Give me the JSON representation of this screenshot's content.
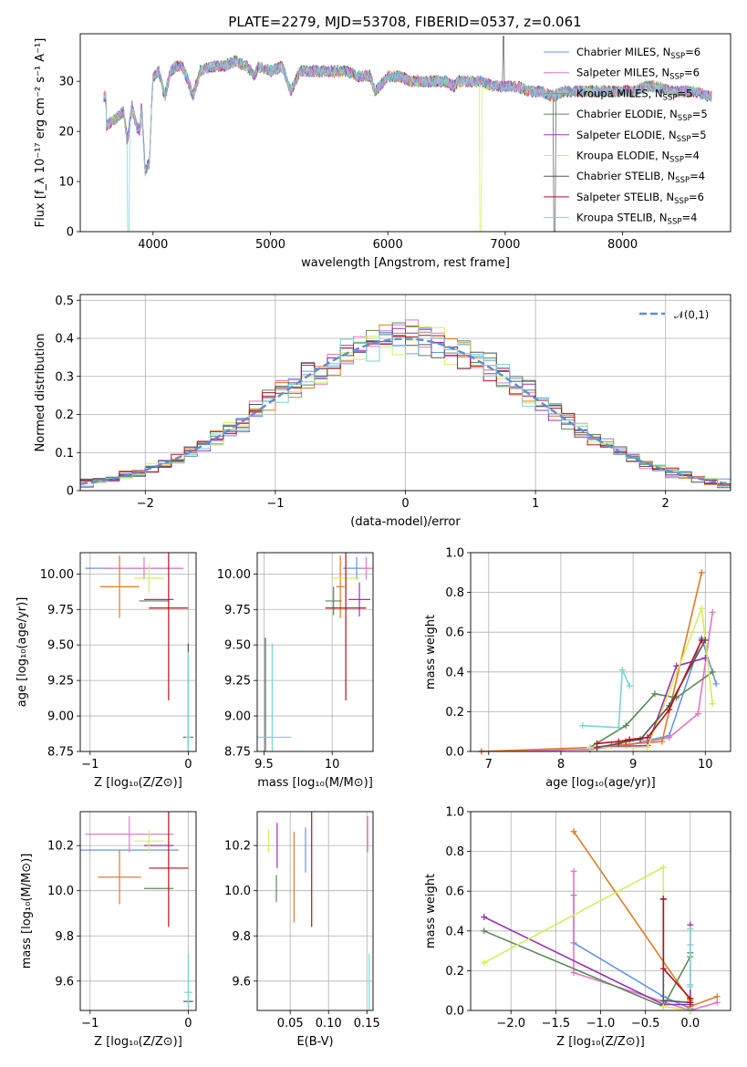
{
  "figure": {
    "title": "PLATE=2279, MJD=53708, FIBERID=0537, z=0.061"
  },
  "colors": {
    "chabrier_miles": "#6495ED",
    "salpeter_miles": "#E377C2",
    "kroupa_miles": "#E07B24",
    "chabrier_elodie": "#5A8A5A",
    "salpeter_elodie": "#9B30B8",
    "kroupa_elodie": "#D4EE5A",
    "chabrier_stelib": "#555555",
    "salpeter_stelib": "#B5121B",
    "kroupa_stelib": "#7ED0D6"
  },
  "chart_data": [
    {
      "id": "spectrum",
      "type": "line",
      "title": "PLATE=2279, MJD=53708, FIBERID=0537, z=0.061",
      "xlabel": "wavelength [Angstrom, rest frame]",
      "ylabel": "Flux [f_λ 10⁻¹⁷ erg cm⁻² s⁻¹ A⁻¹]",
      "xlim": [
        3380,
        8920
      ],
      "ylim": [
        0,
        39.5
      ],
      "xticks": [
        4000,
        5000,
        6000,
        7000,
        8000
      ],
      "yticks": [
        0,
        10,
        20,
        30
      ],
      "legend_position": "top-right",
      "legend": [
        {
          "label": "Chabrier MILES, N",
          "sub": "SSP",
          "eq": "=6",
          "color_key": "chabrier_miles"
        },
        {
          "label": "Salpeter MILES, N",
          "sub": "SSP",
          "eq": "=6",
          "color_key": "salpeter_miles"
        },
        {
          "label": "Kroupa MILES, N",
          "sub": "SSP",
          "eq": "=5",
          "color_key": "kroupa_miles"
        },
        {
          "label": "Chabrier ELODIE, N",
          "sub": "SSP",
          "eq": "=5",
          "color_key": "chabrier_elodie"
        },
        {
          "label": "Salpeter ELODIE, N",
          "sub": "SSP",
          "eq": "=5",
          "color_key": "salpeter_elodie"
        },
        {
          "label": "Kroupa ELODIE, N",
          "sub": "SSP",
          "eq": "=4",
          "color_key": "kroupa_elodie"
        },
        {
          "label": "Chabrier STELIB, N",
          "sub": "SSP",
          "eq": "=4",
          "color_key": "chabrier_stelib"
        },
        {
          "label": "Salpeter STELIB, N",
          "sub": "SSP",
          "eq": "=6",
          "color_key": "salpeter_stelib"
        },
        {
          "label": "Kroupa STELIB, N",
          "sub": "SSP",
          "eq": "=4",
          "color_key": "kroupa_stelib"
        }
      ],
      "spectrum_x": [
        3600,
        3650,
        3700,
        3750,
        3780,
        3820,
        3860,
        3889,
        3900,
        3933,
        3969,
        4000,
        4050,
        4101,
        4150,
        4200,
        4250,
        4300,
        4340,
        4400,
        4500,
        4600,
        4700,
        4800,
        4861,
        4900,
        5000,
        5100,
        5175,
        5250,
        5350,
        5450,
        5550,
        5650,
        5750,
        5850,
        5893,
        6000,
        6100,
        6200,
        6300,
        6400,
        6500,
        6563,
        6600,
        6700,
        6800,
        6900,
        7000,
        7100,
        7200,
        7300,
        7400,
        7500,
        7600,
        7700,
        7800,
        7900,
        8000,
        8100,
        8200,
        8300,
        8400,
        8500,
        8600,
        8750
      ],
      "spectrum_y": [
        21,
        22,
        23,
        24,
        18,
        25,
        21,
        20,
        26,
        12,
        14,
        31,
        32,
        27,
        32,
        33,
        33,
        30,
        27,
        32,
        33,
        33,
        34,
        33,
        31,
        33,
        32,
        33,
        28,
        32,
        32,
        32,
        32,
        32,
        31,
        31,
        28,
        31,
        31,
        30,
        30,
        30,
        30,
        29,
        30,
        30,
        30,
        29,
        29,
        29,
        28,
        28,
        27,
        28,
        28,
        28,
        28,
        28,
        28,
        28,
        29,
        29,
        28,
        28,
        28,
        27
      ]
    },
    {
      "id": "residuals",
      "type": "line",
      "xlabel": "(data-model)/error",
      "ylabel": "Normed distribution",
      "xlim": [
        -2.5,
        2.5
      ],
      "ylim": [
        0,
        0.515
      ],
      "xticks": [
        -2,
        -1,
        0,
        1,
        2
      ],
      "yticks": [
        0.0,
        0.1,
        0.2,
        0.3,
        0.4,
        0.5
      ],
      "grid": true,
      "legend_position": "top-right",
      "legend_label": "𝒩(0,1)",
      "normal_color": "#5B8FD6",
      "bin_width": 0.1
    },
    {
      "id": "age_vs_Z",
      "type": "scatter",
      "xlabel": "Z [log₁₀(Z/Z⊙)]",
      "ylabel": "age  [log₁₀(age/yr)]",
      "xlim": [
        -1.1,
        0.08
      ],
      "ylim": [
        8.75,
        10.15
      ],
      "xticks": [
        -1,
        0
      ],
      "yticks": [
        8.75,
        9.0,
        9.25,
        9.5,
        9.75,
        10.0
      ],
      "grid": true,
      "points": [
        {
          "model": "chabrier_miles",
          "x": -0.55,
          "y": 10.04,
          "xerr": 0.5,
          "yerr": 0.0
        },
        {
          "model": "salpeter_miles",
          "x": -0.45,
          "y": 10.04,
          "xerr": 0.4,
          "yerr": 0.08
        },
        {
          "model": "kroupa_miles",
          "x": -0.7,
          "y": 9.91,
          "xerr": 0.2,
          "yerr": 0.22
        },
        {
          "model": "chabrier_elodie",
          "x": -0.35,
          "y": 9.81,
          "xerr": 0.15,
          "yerr": 0.0
        },
        {
          "model": "salpeter_elodie",
          "x": -0.3,
          "y": 9.82,
          "xerr": 0.15,
          "yerr": 0.0
        },
        {
          "model": "kroupa_elodie",
          "x": -0.4,
          "y": 9.97,
          "xerr": 0.15,
          "yerr": 0.1
        },
        {
          "model": "salpeter_stelib",
          "x": -0.2,
          "y": 9.76,
          "xerr": 0.2,
          "yerr": 0.65
        },
        {
          "model": "chabrier_stelib",
          "x": 0.0,
          "y": 8.85,
          "xerr": 0.05,
          "yerr": 0.66
        },
        {
          "model": "kroupa_stelib",
          "x": 0.0,
          "y": 8.85,
          "xerr": 0.03,
          "yerr": 0.6
        }
      ]
    },
    {
      "id": "age_vs_mass",
      "type": "scatter",
      "xlabel": "mass [log₁₀(M/M⊙)]",
      "xlim": [
        9.45,
        10.3
      ],
      "ylim": [
        8.75,
        10.15
      ],
      "xticks": [
        9.5,
        10.0
      ],
      "yticks": [
        8.75,
        9.0,
        9.25,
        9.5,
        9.75,
        10.0
      ],
      "grid": true,
      "points": [
        {
          "model": "chabrier_miles",
          "x": 10.18,
          "y": 10.04,
          "xerr": 0.1,
          "yerr": 0.08
        },
        {
          "model": "salpeter_miles",
          "x": 10.25,
          "y": 10.04,
          "xerr": 0.05,
          "yerr": 0.08
        },
        {
          "model": "kroupa_miles",
          "x": 10.06,
          "y": 9.91,
          "xerr": 0.03,
          "yerr": 0.22
        },
        {
          "model": "chabrier_elodie",
          "x": 10.01,
          "y": 9.81,
          "xerr": 0.06,
          "yerr": 0.1
        },
        {
          "model": "salpeter_elodie",
          "x": 10.2,
          "y": 9.82,
          "xerr": 0.08,
          "yerr": 0.12
        },
        {
          "model": "kroupa_elodie",
          "x": 10.1,
          "y": 9.97,
          "xerr": 0.1,
          "yerr": 0.1
        },
        {
          "model": "salpeter_stelib",
          "x": 10.1,
          "y": 9.76,
          "xerr": 0.15,
          "yerr": 0.65
        },
        {
          "model": "chabrier_stelib",
          "x": 9.51,
          "y": 8.85,
          "xerr": 0.0,
          "yerr": 0.7
        },
        {
          "model": "kroupa_stelib",
          "x": 9.56,
          "y": 8.85,
          "xerr": 0.14,
          "yerr": 0.66
        }
      ]
    },
    {
      "id": "weight_vs_age",
      "type": "line",
      "xlabel": "age  [log₁₀(age/yr)]",
      "ylabel": "mass weight",
      "xlim": [
        6.75,
        10.35
      ],
      "ylim": [
        0,
        1.0
      ],
      "xticks": [
        7,
        8,
        9,
        10
      ],
      "yticks": [
        0.0,
        0.2,
        0.4,
        0.6,
        0.8,
        1.0
      ],
      "grid": true,
      "series": [
        {
          "model": "chabrier_miles",
          "x": [
            6.9,
            8.4,
            8.9,
            9.5,
            9.95,
            10.15
          ],
          "y": [
            0.0,
            0.01,
            0.03,
            0.08,
            0.57,
            0.34
          ]
        },
        {
          "model": "salpeter_miles",
          "x": [
            6.9,
            8.4,
            8.9,
            9.5,
            9.9,
            10.1
          ],
          "y": [
            0.0,
            0.01,
            0.03,
            0.07,
            0.19,
            0.7
          ]
        },
        {
          "model": "kroupa_miles",
          "x": [
            6.9,
            8.4,
            8.7,
            9.4,
            9.95
          ],
          "y": [
            0.0,
            0.02,
            0.03,
            0.05,
            0.9
          ]
        },
        {
          "model": "chabrier_elodie",
          "x": [
            8.4,
            8.9,
            9.3,
            9.6,
            10.1
          ],
          "y": [
            0.02,
            0.13,
            0.29,
            0.27,
            0.4
          ]
        },
        {
          "model": "salpeter_elodie",
          "x": [
            8.5,
            9.2,
            9.6,
            10.0
          ],
          "y": [
            0.02,
            0.03,
            0.43,
            0.47
          ]
        },
        {
          "model": "kroupa_elodie",
          "x": [
            8.4,
            9.2,
            9.95,
            10.1
          ],
          "y": [
            0.02,
            0.02,
            0.72,
            0.24
          ]
        },
        {
          "model": "chabrier_stelib",
          "x": [
            8.5,
            8.8,
            8.9,
            9.1,
            9.5,
            10.0
          ],
          "y": [
            0.02,
            0.04,
            0.05,
            0.06,
            0.23,
            0.56
          ]
        },
        {
          "model": "salpeter_stelib",
          "x": [
            8.5,
            8.8,
            8.95,
            9.2,
            9.5,
            9.95
          ],
          "y": [
            0.04,
            0.05,
            0.06,
            0.07,
            0.21,
            0.56
          ]
        },
        {
          "model": "kroupa_stelib",
          "x": [
            8.3,
            8.8,
            8.85,
            8.95
          ],
          "y": [
            0.13,
            0.12,
            0.41,
            0.33
          ]
        }
      ]
    },
    {
      "id": "mass_vs_Z",
      "type": "scatter",
      "xlabel": "Z [log₁₀(Z/Z⊙)]",
      "ylabel": "mass [log₁₀(M/M⊙)]",
      "xlim": [
        -1.1,
        0.08
      ],
      "ylim": [
        9.47,
        10.35
      ],
      "xticks": [
        -1,
        0
      ],
      "yticks": [
        9.6,
        9.8,
        10.0,
        10.2
      ],
      "grid": true,
      "points": [
        {
          "model": "chabrier_miles",
          "x": -0.6,
          "y": 10.18,
          "xerr": 0.5,
          "yerr": 0.0
        },
        {
          "model": "salpeter_miles",
          "x": -0.6,
          "y": 10.25,
          "xerr": 0.45,
          "yerr": 0.08
        },
        {
          "model": "kroupa_miles",
          "x": -0.7,
          "y": 10.06,
          "xerr": 0.22,
          "yerr": 0.12
        },
        {
          "model": "chabrier_elodie",
          "x": -0.3,
          "y": 10.01,
          "xerr": 0.15,
          "yerr": 0.0
        },
        {
          "model": "salpeter_elodie",
          "x": -0.3,
          "y": 10.2,
          "xerr": 0.15,
          "yerr": 0.0
        },
        {
          "model": "kroupa_elodie",
          "x": -0.4,
          "y": 10.22,
          "xerr": 0.15,
          "yerr": 0.05
        },
        {
          "model": "salpeter_stelib",
          "x": -0.2,
          "y": 10.1,
          "xerr": 0.2,
          "yerr": 0.26
        },
        {
          "model": "chabrier_stelib",
          "x": 0.0,
          "y": 9.51,
          "xerr": 0.05,
          "yerr": 0.0
        },
        {
          "model": "kroupa_stelib",
          "x": 0.0,
          "y": 9.55,
          "xerr": 0.04,
          "yerr": 0.17
        }
      ]
    },
    {
      "id": "mass_vs_EBV",
      "type": "scatter",
      "xlabel": "E(B-V)",
      "xlim": [
        0.007,
        0.158
      ],
      "ylim": [
        9.47,
        10.35
      ],
      "xticks": [
        0.05,
        0.1,
        0.15
      ],
      "xticklabels": [
        "0.05",
        "0.10",
        "0.15"
      ],
      "yticks": [
        9.6,
        9.8,
        10.0,
        10.2
      ],
      "grid": true,
      "points": [
        {
          "model": "chabrier_miles",
          "x": 0.07,
          "y": 10.18,
          "xerr": 0.0,
          "yerr": 0.1
        },
        {
          "model": "salpeter_miles",
          "x": 0.151,
          "y": 10.25,
          "xerr": 0.0,
          "yerr": 0.08
        },
        {
          "model": "kroupa_miles",
          "x": 0.055,
          "y": 10.06,
          "xerr": 0.0,
          "yerr": 0.2
        },
        {
          "model": "chabrier_elodie",
          "x": 0.032,
          "y": 10.01,
          "xerr": 0.0,
          "yerr": 0.06
        },
        {
          "model": "salpeter_elodie",
          "x": 0.033,
          "y": 10.2,
          "xerr": 0.0,
          "yerr": 0.1
        },
        {
          "model": "kroupa_elodie",
          "x": 0.022,
          "y": 10.22,
          "xerr": 0.0,
          "yerr": 0.05
        },
        {
          "model": "salpeter_stelib",
          "x": 0.078,
          "y": 10.1,
          "xerr": 0.0,
          "yerr": 0.26
        },
        {
          "model": "chabrier_stelib",
          "x": 0.152,
          "y": 9.51,
          "xerr": 0.0,
          "yerr": 0.0
        },
        {
          "model": "kroupa_stelib",
          "x": 0.153,
          "y": 9.55,
          "xerr": 0.0,
          "yerr": 0.17
        }
      ]
    },
    {
      "id": "weight_vs_Z",
      "type": "line",
      "xlabel": "Z [log₁₀(Z/Z⊙)]",
      "ylabel": "mass weight",
      "xlim": [
        -2.45,
        0.45
      ],
      "ylim": [
        0,
        1.0
      ],
      "xticks": [
        -2.0,
        -1.5,
        -1.0,
        -0.5,
        0.0
      ],
      "xticklabels": [
        "−2.0",
        "−1.5",
        "−1.0",
        "−0.5",
        "0.0"
      ],
      "yticks": [
        0.0,
        0.2,
        0.4,
        0.6,
        0.8,
        1.0
      ],
      "grid": true,
      "series": [
        {
          "model": "chabrier_miles",
          "x": [
            -1.3,
            -1.3,
            -0.3,
            0.0,
            0.0
          ],
          "y": [
            0.58,
            0.34,
            0.07,
            0.01,
            0.0
          ]
        },
        {
          "model": "salpeter_miles",
          "x": [
            -1.3,
            -1.3,
            0.0,
            0.3
          ],
          "y": [
            0.7,
            0.19,
            0.0,
            0.04
          ]
        },
        {
          "model": "kroupa_miles",
          "x": [
            -1.3,
            0.0,
            0.0,
            0.3
          ],
          "y": [
            0.9,
            0.05,
            0.02,
            0.07
          ]
        },
        {
          "model": "chabrier_elodie",
          "x": [
            -2.3,
            -0.3,
            0.0,
            0.0
          ],
          "y": [
            0.4,
            0.02,
            0.27,
            0.29
          ]
        },
        {
          "model": "salpeter_elodie",
          "x": [
            -2.3,
            -0.3,
            0.0,
            0.0
          ],
          "y": [
            0.47,
            0.03,
            0.03,
            0.43
          ]
        },
        {
          "model": "kroupa_elodie",
          "x": [
            -2.3,
            -0.3,
            -0.3,
            0.0
          ],
          "y": [
            0.24,
            0.72,
            0.02,
            0.0
          ]
        },
        {
          "model": "chabrier_stelib",
          "x": [
            -0.3,
            -0.3,
            0.0,
            0.0
          ],
          "y": [
            0.56,
            0.05,
            0.04,
            0.06
          ]
        },
        {
          "model": "salpeter_stelib",
          "x": [
            -0.3,
            -0.3,
            0.0,
            0.0
          ],
          "y": [
            0.56,
            0.21,
            0.06,
            0.04
          ]
        },
        {
          "model": "kroupa_stelib",
          "x": [
            0.0,
            0.0,
            0.0,
            0.0
          ],
          "y": [
            0.41,
            0.33,
            0.13,
            0.12
          ]
        }
      ]
    }
  ]
}
